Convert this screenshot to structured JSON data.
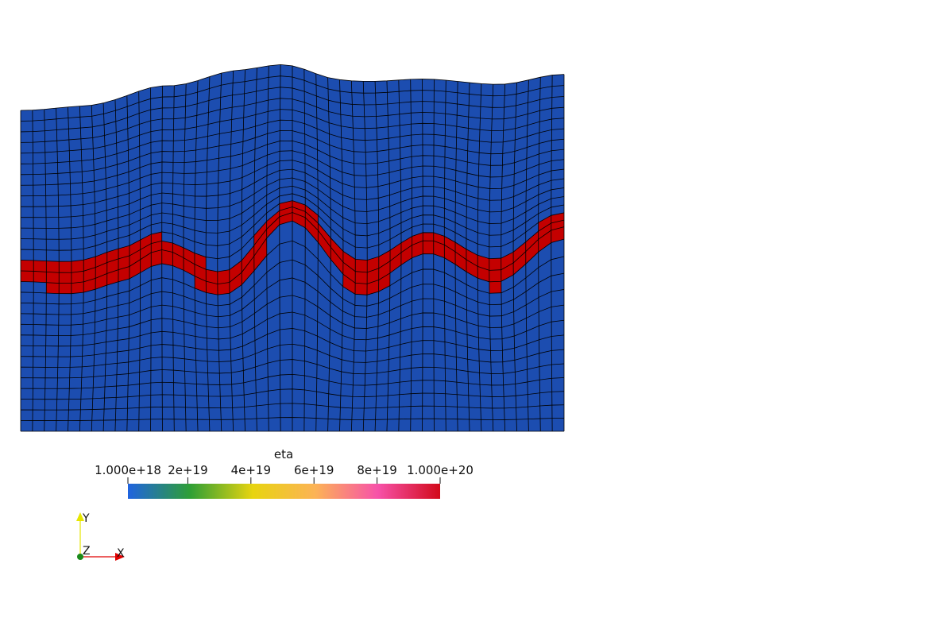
{
  "scene": {
    "background": "#ffffff",
    "mesh": {
      "cells_x": 46,
      "cells_y": 30,
      "edge_color": "#000000",
      "layer_color": "#c40000",
      "matrix_color": "#1c4db0"
    }
  },
  "colorbar": {
    "title": "eta",
    "stops": [
      "#1f63e0",
      "#2f9f35",
      "#e8d410",
      "#fcb356",
      "#f752a9",
      "#d20a1a"
    ],
    "ticks": [
      {
        "label": "1.000e+18",
        "value": 1e+18
      },
      {
        "label": "2e+19",
        "value": 2e+19
      },
      {
        "label": "4e+19",
        "value": 4e+19
      },
      {
        "label": "6e+19",
        "value": 6e+19
      },
      {
        "label": "8e+19",
        "value": 8e+19
      },
      {
        "label": "1.000e+20",
        "value": 1e+20
      }
    ],
    "range": [
      1e+18,
      1e+20
    ]
  },
  "orientation_axes": {
    "x_label": "X",
    "y_label": "Y",
    "z_label": "Z",
    "x_color": "#e00000",
    "y_color": "#e6e600",
    "z_color": "#1a8a1a"
  }
}
